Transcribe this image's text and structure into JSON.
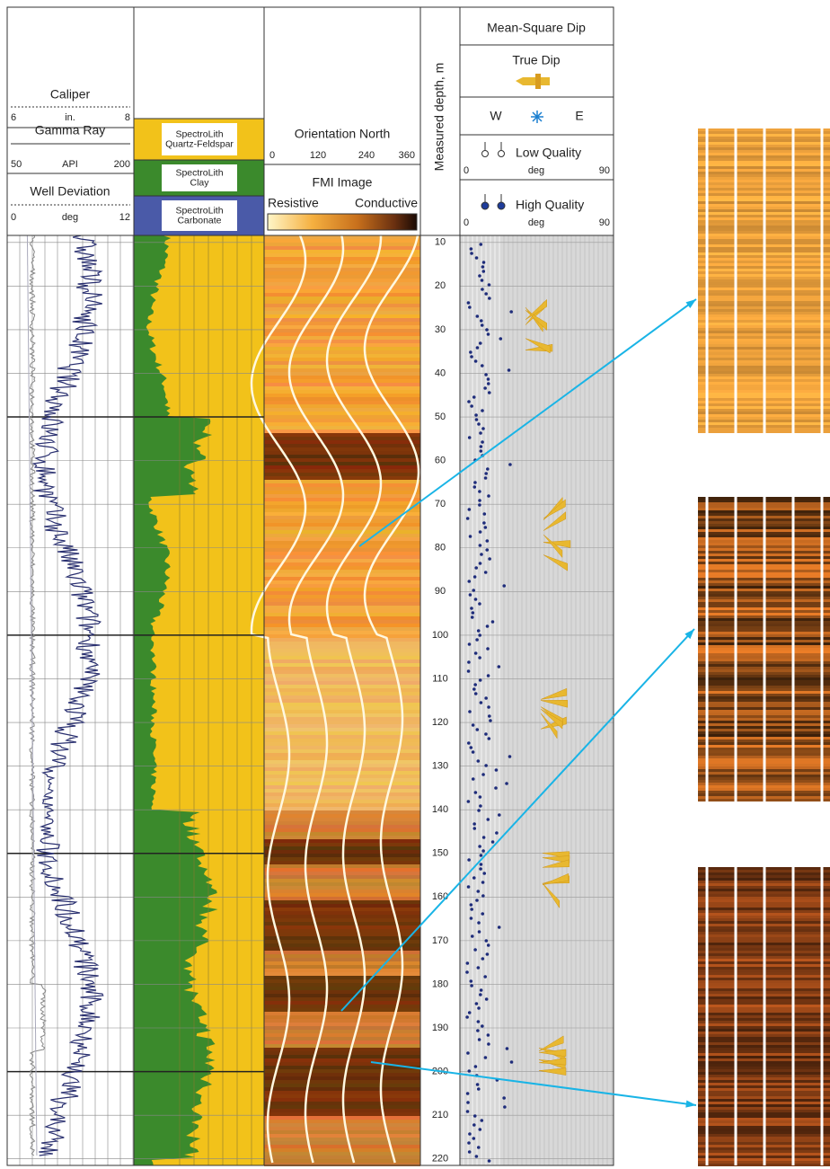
{
  "header": {
    "track1": {
      "caliper": {
        "label": "Caliper",
        "min": 6,
        "unit": "in.",
        "max": 8
      },
      "gamma_ray": {
        "label": "Gamma Ray",
        "min": 50,
        "unit": "API",
        "max": 200
      },
      "well_deviation": {
        "label": "Well Deviation",
        "min": 0,
        "unit": "deg",
        "max": 12
      }
    },
    "track2": {
      "legend": [
        {
          "lines": [
            "SpectroLith",
            "Quartz-Feldspar"
          ],
          "color": "#f2c21a"
        },
        {
          "lines": [
            "SpectroLith",
            "Clay"
          ],
          "color": "#3b8a2c"
        },
        {
          "lines": [
            "SpectroLith",
            "Carbonate"
          ],
          "color": "#4a5aa8"
        }
      ]
    },
    "track3": {
      "orientation_label": "Orientation North",
      "orientation_ticks": [
        0,
        120,
        240,
        360
      ],
      "image_label": "FMI Image",
      "resistive": "Resistive",
      "conductive": "Conductive"
    },
    "depth": {
      "label": "Measured depth, m",
      "lim": [
        8.4,
        221.5
      ],
      "ticks": [
        10,
        20,
        30,
        40,
        50,
        60,
        70,
        80,
        90,
        100,
        110,
        120,
        130,
        140,
        150,
        160,
        170,
        180,
        190,
        200,
        210,
        220
      ]
    },
    "track5": {
      "mean_square_dip": "Mean-Square Dip",
      "true_dip": "True Dip",
      "west": "W",
      "east": "E",
      "low_quality": "Low Quality",
      "low_scale": {
        "min": 0,
        "unit": "deg",
        "max": 90
      },
      "high_quality": "High Quality",
      "high_scale": {
        "min": 0,
        "unit": "deg",
        "max": 90
      }
    }
  }
}
